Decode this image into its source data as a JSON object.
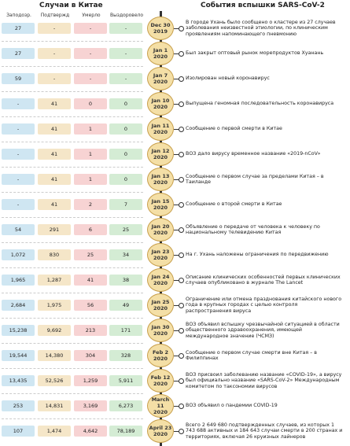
{
  "header": {
    "left_title": "Случаи в Китае",
    "right_title": "События вспышки SARS-CoV-2"
  },
  "columns": [
    "Заподозр.",
    "Подтвержд",
    "Умерло",
    "Выздоровело"
  ],
  "rows": [
    {
      "cells": [
        "27",
        "-",
        "-",
        "-"
      ],
      "date": "Dec 30",
      "year": "2019",
      "event": "В городе Ухань было сообщено о кластере из 27 случаев заболевания неизвестной этиологии, по клиническим проявлениям напоминающего пневмонию"
    },
    {
      "cells": [
        "27",
        "-",
        "-",
        "-"
      ],
      "date": "Jan 1",
      "year": "2020",
      "event": "Был закрыт оптовый рынок морепродуктов Хуанань"
    },
    {
      "cells": [
        "59",
        "-",
        "-",
        "-"
      ],
      "date": "Jan 7",
      "year": "2020",
      "event": "Изолирован новый коронавирус"
    },
    {
      "cells": [
        "-",
        "41",
        "0",
        "0"
      ],
      "date": "Jan 10",
      "year": "2020",
      "event": "Выпущена геномная последовательность коронавируса"
    },
    {
      "cells": [
        "-",
        "41",
        "1",
        "0"
      ],
      "date": "Jan 11",
      "year": "2020",
      "event": "Сообщение о первой смерти в Китае"
    },
    {
      "cells": [
        "-",
        "41",
        "1",
        "0"
      ],
      "date": "Jan 12",
      "year": "2020",
      "event": "ВОЗ дало вирусу временное название «2019-nCoV»"
    },
    {
      "cells": [
        "-",
        "41",
        "1",
        "0"
      ],
      "date": "Jan 13",
      "year": "2020",
      "event": "Сообщение о первом случае за пределами Китая – в Таиланде"
    },
    {
      "cells": [
        "-",
        "41",
        "2",
        "7"
      ],
      "date": "Jan 15",
      "year": "2020",
      "event": "Сообщение о второй смерти в Китае"
    },
    {
      "cells": [
        "54",
        "291",
        "6",
        "25"
      ],
      "date": "Jan 20",
      "year": "2020",
      "event": "Объявление о передаче от человека к человеку по национальному телевидению Китая"
    },
    {
      "cells": [
        "1,072",
        "830",
        "25",
        "34"
      ],
      "date": "Jan 23",
      "year": "2020",
      "event": "На г. Ухань наложены ограничения по передвижению"
    },
    {
      "cells": [
        "1,965",
        "1,287",
        "41",
        "38"
      ],
      "date": "Jan 24",
      "year": "2020",
      "event": "Описание клинических особенностей первых клинических случаев опубликовано в журнале The Lancet"
    },
    {
      "cells": [
        "2,684",
        "1,975",
        "56",
        "49"
      ],
      "date": "Jan 25",
      "year": "2020",
      "event": "Ограничение или отмена празднования китайского нового года в крупных городах с целью контроля распространения вируса"
    },
    {
      "cells": [
        "15,238",
        "9,692",
        "213",
        "171"
      ],
      "date": "Jan 30",
      "year": "2020",
      "event": "ВОЗ объявил вспышку чрезвычайной ситуацией в области общественного здравоохранения, имеющей международное значение (ЧСМЗ)"
    },
    {
      "cells": [
        "19,544",
        "14,380",
        "304",
        "328"
      ],
      "date": "Feb 2",
      "year": "2020",
      "event": "Сообщение о первом случае смерти вне Китая – в Филиппинах"
    },
    {
      "cells": [
        "13,435",
        "52,526",
        "1,259",
        "5,911"
      ],
      "date": "Feb 12",
      "year": "2020",
      "event": "ВОЗ присвоил заболеванию название «COVID-19», а вирусу был официально название «SARS-CoV-2» Международным комитетом по таксономии вирусов"
    },
    {
      "cells": [
        "253",
        "14,831",
        "3,169",
        "6,273"
      ],
      "date": "March 11",
      "year": "2020",
      "event": "ВОЗ объявил о пандемии COVID-19"
    },
    {
      "cells": [
        "107",
        "1,474",
        "4,642",
        "78,189"
      ],
      "date": "April 23",
      "year": "2020",
      "event": "Всего 2 649 680 подтвержденных случаев, из которых 1 743 688 активных и 184 643 случаи смерти в 200 странах и территориях, включая 26 круизных лайнеров"
    }
  ]
}
